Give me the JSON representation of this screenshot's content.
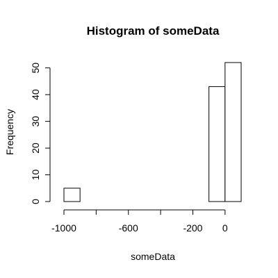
{
  "chart_data": {
    "type": "bar",
    "title": "Histogram of someData",
    "xlabel": "someData",
    "ylabel": "Frequency",
    "bins": [
      {
        "start": -1000,
        "end": -900,
        "count": 5
      },
      {
        "start": -900,
        "end": -800,
        "count": 0
      },
      {
        "start": -800,
        "end": -700,
        "count": 0
      },
      {
        "start": -700,
        "end": -600,
        "count": 0
      },
      {
        "start": -600,
        "end": -500,
        "count": 0
      },
      {
        "start": -500,
        "end": -400,
        "count": 0
      },
      {
        "start": -400,
        "end": -300,
        "count": 0
      },
      {
        "start": -300,
        "end": -200,
        "count": 0
      },
      {
        "start": -200,
        "end": -100,
        "count": 0
      },
      {
        "start": -100,
        "end": 0,
        "count": 43
      },
      {
        "start": 0,
        "end": 100,
        "count": 52
      }
    ],
    "x_ticks": [
      -1000,
      -800,
      -600,
      -400,
      -200,
      0
    ],
    "x_tick_labels": [
      "-1000",
      "",
      "-600",
      "",
      "-200",
      "0"
    ],
    "y_ticks": [
      0,
      10,
      20,
      30,
      40,
      50
    ],
    "y_tick_labels": [
      "0",
      "10",
      "20",
      "30",
      "40",
      "50"
    ],
    "xlim": [
      -1000,
      100
    ],
    "ylim": [
      0,
      52
    ],
    "grid": false,
    "bar_fill": "#ffffff",
    "bar_stroke": "#000000"
  }
}
